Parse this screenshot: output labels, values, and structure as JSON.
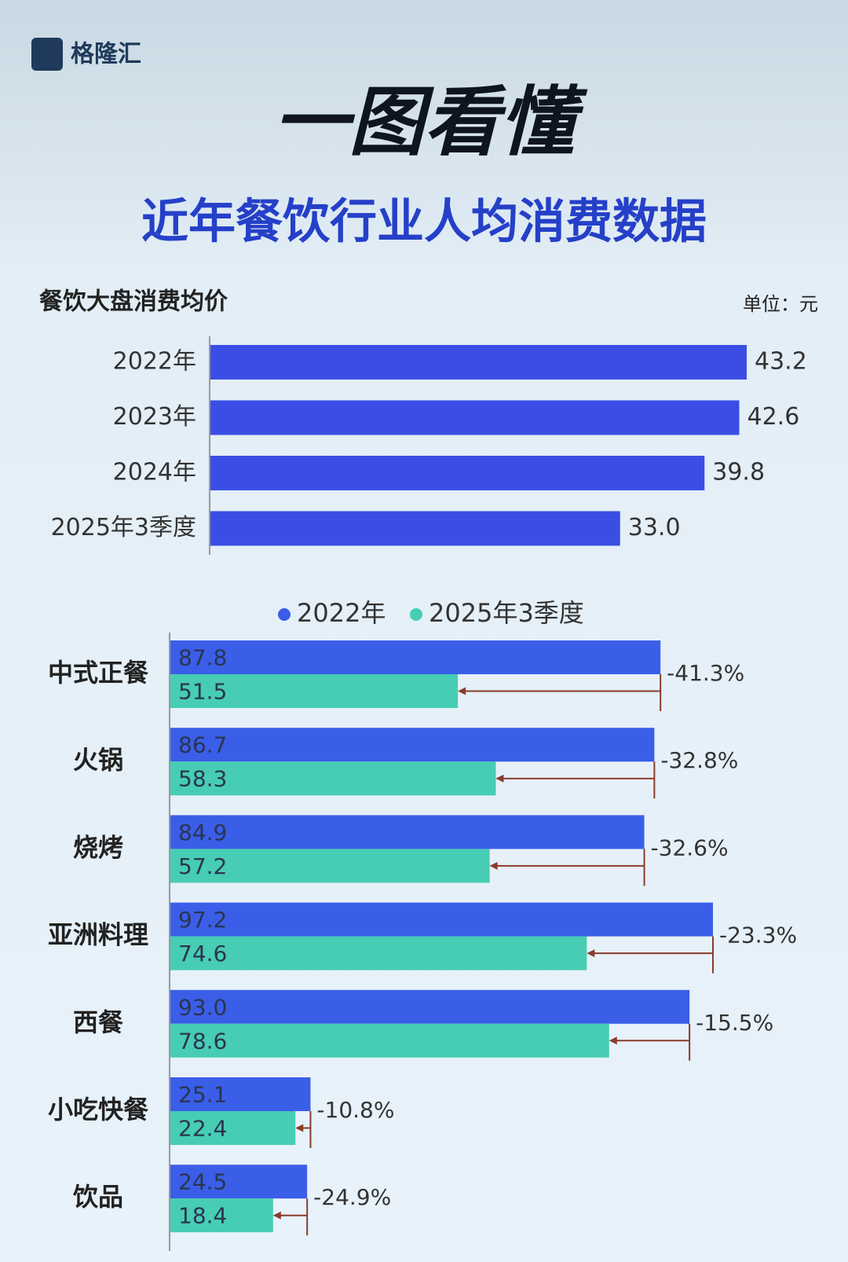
{
  "header": {
    "logo": "格隆汇",
    "title": "一图看懂",
    "subtitle": "近年餐饮行业人均消费数据"
  },
  "chart_data": [
    {
      "type": "hbar",
      "title": "餐饮大盘消费均价",
      "unit": "单位：元",
      "color": "#3a4ee6",
      "categories": [
        "2022年",
        "2023年",
        "2024年",
        "2025年3季度"
      ],
      "values": [
        43.2,
        42.6,
        39.8,
        33.0
      ],
      "value_labels": [
        "43.2",
        "42.6",
        "39.8",
        "33.0"
      ]
    },
    {
      "type": "grouped-hbar",
      "categories": [
        "中式正餐",
        "火锅",
        "烧烤",
        "亚洲料理",
        "西餐",
        "小吃快餐",
        "饮品"
      ],
      "series": [
        {
          "name": "2022年",
          "color": "#3a5ee8",
          "values": [
            87.8,
            86.7,
            84.9,
            97.2,
            93.0,
            25.1,
            24.5
          ],
          "value_labels": [
            "87.8",
            "86.7",
            "84.9",
            "97.2",
            "93.0",
            "25.1",
            "24.5"
          ]
        },
        {
          "name": "2025年3季度",
          "color": "#47cdb4",
          "values": [
            51.5,
            58.3,
            57.2,
            74.6,
            78.6,
            22.4,
            18.4
          ],
          "value_labels": [
            "51.5",
            "58.3",
            "57.2",
            "74.6",
            "78.6",
            "22.4",
            "18.4"
          ]
        }
      ],
      "changes": {
        "color": "#8a3b2c",
        "values": [
          -41.3,
          -32.8,
          -32.6,
          -23.3,
          -15.5,
          -10.8,
          -24.9
        ],
        "value_labels": [
          "-41.3%",
          "-32.8%",
          "-32.6%",
          "-23.3%",
          "-15.5%",
          "-10.8%",
          "-24.9%"
        ]
      }
    }
  ]
}
